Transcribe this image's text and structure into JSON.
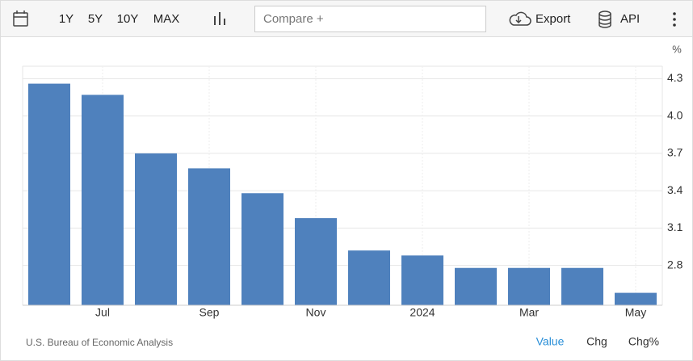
{
  "toolbar": {
    "ranges": [
      "1Y",
      "5Y",
      "10Y",
      "MAX"
    ],
    "compare": "Compare +",
    "export": "Export",
    "api": "API"
  },
  "chart_data": {
    "type": "bar",
    "unit": "%",
    "categories": [
      null,
      "Jul",
      null,
      "Sep",
      null,
      "Nov",
      null,
      "2024",
      null,
      "Mar",
      null,
      "May"
    ],
    "values": [
      4.26,
      4.17,
      3.7,
      3.58,
      3.38,
      3.18,
      2.92,
      2.88,
      2.78,
      2.78,
      2.78,
      2.58
    ],
    "color": "#4f81bd",
    "ylim": [
      2.48,
      4.4
    ],
    "yticks": [
      2.8,
      3.1,
      3.4,
      3.7,
      {
        "value": 4,
        "label": "4.0"
      },
      4.3
    ],
    "grid": true
  },
  "footer": {
    "source": "U.S. Bureau of Economic Analysis",
    "modes": [
      "Value",
      "Chg",
      "Chg%"
    ]
  }
}
